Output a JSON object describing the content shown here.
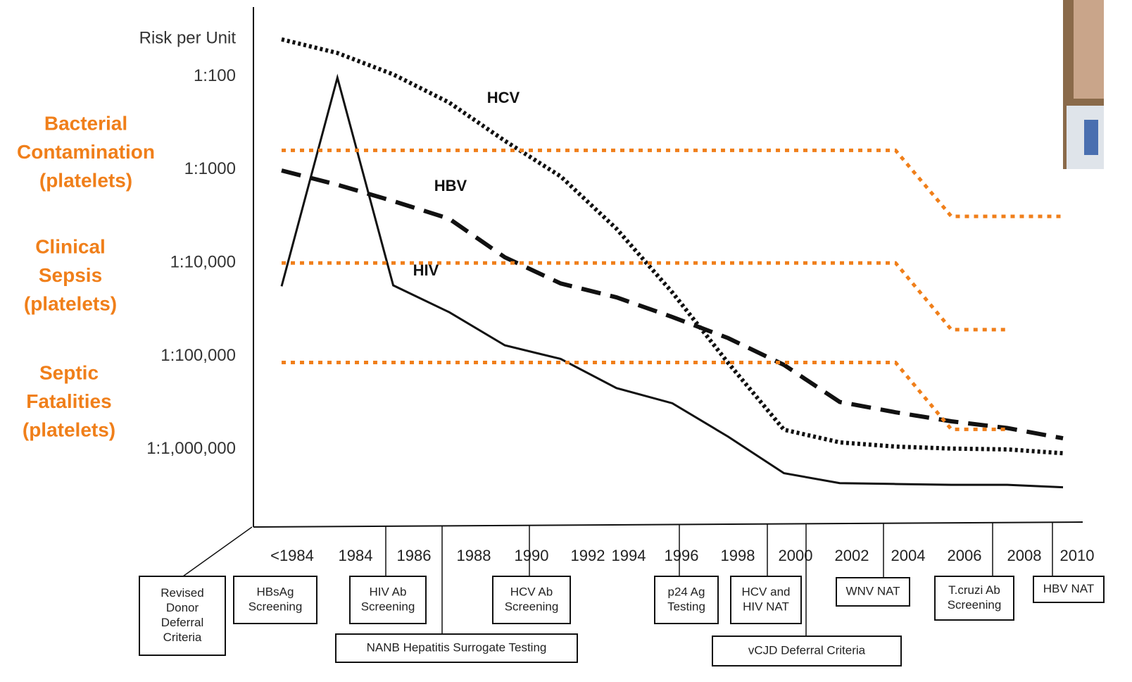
{
  "chart_data": {
    "type": "line",
    "ylabel": "Risk per Unit",
    "log_scale": true,
    "y_inverted": true,
    "ylim": [
      18,
      6800000
    ],
    "yticks": [
      {
        "value": 100,
        "label": "1:100"
      },
      {
        "value": 1000,
        "label": "1:1000"
      },
      {
        "value": 10000,
        "label": "1:10,000"
      },
      {
        "value": 100000,
        "label": "1:100,000"
      },
      {
        "value": 1000000,
        "label": "1:1,000,000"
      }
    ],
    "categories": [
      "<1984",
      "1984",
      "1986",
      "1988",
      "1990",
      "1992",
      "1994",
      "1996",
      "1998",
      "2000",
      "2002",
      "2004",
      "2006",
      "2008",
      "2010"
    ],
    "series": [
      {
        "name": "HCV",
        "color": "#111111",
        "style": "dotted",
        "values": [
          40,
          56,
          95,
          190,
          490,
          1180,
          4300,
          20700,
          118000,
          615000,
          841000,
          933000,
          980000,
          1000000,
          1100000
        ]
      },
      {
        "name": "HBV",
        "color": "#111111",
        "style": "dashed",
        "values": [
          1020,
          1450,
          2170,
          3350,
          8700,
          16600,
          23400,
          38000,
          64000,
          124000,
          310000,
          400000,
          500000,
          590000,
          760000
        ]
      },
      {
        "name": "HIV",
        "color": "#111111",
        "style": "solid",
        "values": [
          17800,
          103,
          17400,
          33700,
          76500,
          107000,
          220000,
          320000,
          730000,
          1800000,
          2300000,
          2350000,
          2400000,
          2400000,
          2550000
        ]
      },
      {
        "name_lines": [
          "Bacterial",
          "Contamination",
          "(platelets)"
        ],
        "color": "#f07f1a",
        "style": "orange-dotted",
        "values": [
          620,
          620,
          620,
          620,
          620,
          620,
          620,
          620,
          620,
          620,
          620,
          620,
          3170,
          3170,
          3170
        ]
      },
      {
        "name_lines": [
          "Clinical",
          "Sepsis",
          "(platelets)"
        ],
        "color": "#f07f1a",
        "style": "orange-dotted",
        "values": [
          10000,
          10000,
          10000,
          10000,
          10000,
          10000,
          10000,
          10000,
          10000,
          10000,
          10000,
          10000,
          52000,
          52000,
          null
        ]
      },
      {
        "name_lines": [
          "Septic",
          "Fatalities",
          "(platelets)"
        ],
        "color": "#f07f1a",
        "style": "orange-dotted",
        "values": [
          117000,
          117000,
          117000,
          117000,
          117000,
          117000,
          117000,
          117000,
          117000,
          117000,
          117000,
          117000,
          610000,
          610000,
          null
        ]
      }
    ],
    "milestones": [
      {
        "lines": [
          "Revised",
          "Donor",
          "Deferral",
          "Criteria"
        ]
      },
      {
        "lines": [
          "HBsAg",
          "Screening"
        ]
      },
      {
        "lines": [
          "HIV Ab",
          "Screening"
        ]
      },
      {
        "lines": [
          "NANB Hepatitis Surrogate Testing"
        ]
      },
      {
        "lines": [
          "HCV Ab",
          "Screening"
        ]
      },
      {
        "lines": [
          "p24 Ag",
          "Testing"
        ]
      },
      {
        "lines": [
          "HCV and",
          "HIV NAT"
        ]
      },
      {
        "lines": [
          "vCJD Deferral Criteria"
        ]
      },
      {
        "lines": [
          "WNV NAT"
        ]
      },
      {
        "lines": [
          "T.cruzi Ab",
          "Screening"
        ]
      },
      {
        "lines": [
          "HBV NAT"
        ]
      }
    ]
  }
}
